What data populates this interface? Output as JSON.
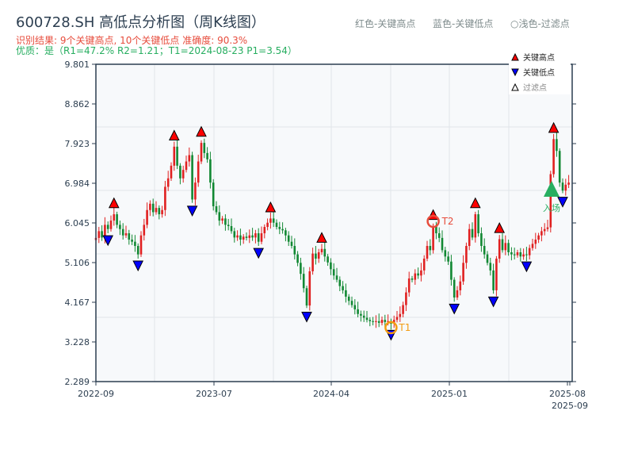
{
  "header": {
    "title": "600728.SH 高低点分析图（周K线图）",
    "result_line": "识别结果: 9个关键高点, 10个关键低点  准确度: 90.3%",
    "quality_line": "优质：是（R1=47.2%  R2=1.21；T1=2024-08-23 P1=3.54）"
  },
  "top_legend": {
    "red": "红色-关键高点",
    "blue": "蓝色-关键低点",
    "light": "○浅色-过滤点"
  },
  "chart_data": {
    "type": "candlestick",
    "title": "600728.SH 高低点分析图（周K线图）",
    "yticks": [
      "9.801",
      "8.862",
      "7.923",
      "6.984",
      "6.045",
      "5.106",
      "4.167",
      "3.228",
      "2.289"
    ],
    "ylim": [
      2.289,
      9.801
    ],
    "xticks": [
      "2022-09",
      "2023-07",
      "2024-04",
      "2025-01",
      "2025-08",
      "2025-09"
    ],
    "grid": true,
    "legend_placement": "top-right",
    "legend": [
      {
        "label": "关键高点",
        "color": "#ff0000",
        "shape": "triangle-up"
      },
      {
        "label": "关键低点",
        "color": "#0000ff",
        "shape": "triangle-down"
      },
      {
        "label": "过滤点",
        "color": "#ffffff",
        "shape": "triangle-up"
      }
    ],
    "colors": {
      "up": "#e02020",
      "down": "#118833",
      "high": "#ff0000",
      "low": "#0000ff",
      "entry": "#27ae60",
      "t1": "#f39c12",
      "t2": "#e74c3c"
    },
    "closes": [
      5.69,
      5.85,
      5.7,
      6.0,
      5.9,
      6.1,
      6.25,
      6.0,
      5.9,
      5.75,
      5.8,
      5.65,
      5.6,
      5.5,
      5.3,
      5.75,
      6.0,
      6.35,
      6.5,
      6.3,
      6.4,
      6.25,
      6.35,
      6.9,
      7.1,
      7.4,
      7.85,
      7.4,
      7.1,
      7.3,
      7.5,
      7.65,
      6.6,
      7.0,
      7.5,
      7.94,
      7.7,
      7.55,
      7.0,
      6.44,
      6.3,
      6.1,
      6.15,
      6.0,
      5.97,
      5.85,
      5.7,
      5.75,
      5.65,
      5.72,
      5.69,
      5.75,
      5.7,
      5.8,
      5.6,
      5.8,
      5.95,
      6.05,
      6.15,
      6.05,
      5.95,
      5.9,
      5.87,
      5.75,
      5.6,
      5.5,
      5.3,
      5.1,
      4.84,
      4.5,
      4.09,
      4.9,
      5.32,
      5.2,
      5.35,
      5.43,
      5.25,
      5.11,
      4.95,
      4.8,
      4.7,
      4.55,
      4.45,
      4.3,
      4.2,
      4.1,
      4.0,
      3.89,
      3.85,
      3.8,
      3.75,
      3.72,
      3.7,
      3.72,
      3.68,
      3.75,
      3.7,
      3.72,
      3.66,
      3.75,
      3.82,
      3.89,
      4.1,
      4.4,
      4.73,
      4.7,
      4.85,
      4.8,
      4.92,
      5.2,
      5.5,
      5.4,
      5.97,
      5.8,
      5.69,
      5.4,
      5.25,
      5.13,
      4.7,
      4.28,
      4.45,
      4.66,
      5.1,
      5.5,
      5.9,
      5.7,
      6.25,
      5.8,
      5.5,
      5.3,
      5.1,
      4.92,
      4.45,
      5.2,
      5.66,
      5.4,
      5.57,
      5.35,
      5.3,
      5.28,
      5.35,
      5.25,
      5.3,
      5.28,
      5.45,
      5.55,
      5.65,
      5.75,
      5.85,
      5.9,
      5.94,
      7.2,
      8.03,
      7.75,
      7.0,
      6.81,
      6.95,
      7.0
    ],
    "key_high_idx": [
      6,
      26,
      35,
      58,
      75,
      112,
      126,
      134,
      152
    ],
    "key_low_idx": [
      4,
      14,
      32,
      54,
      70,
      98,
      119,
      132,
      143,
      155
    ],
    "annotations": [
      {
        "label": "T1",
        "idx": 98,
        "price": 3.54
      },
      {
        "label": "T2",
        "idx": 112,
        "price": 6.04
      },
      {
        "label": "入场",
        "idx": 151,
        "price": 6.84
      }
    ]
  }
}
